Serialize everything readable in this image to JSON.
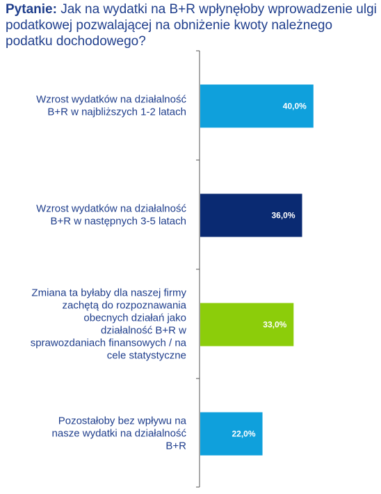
{
  "question": {
    "label": "Pytanie:",
    "text": "Jak na wydatki na B+R wpłynęłoby wprowadzenie ulgi podatkowej pozwalającej na obniżenie kwoty należnego podatku dochodowego?"
  },
  "chart_data": {
    "type": "bar",
    "orientation": "horizontal",
    "title": "",
    "xlabel": "",
    "ylabel": "",
    "xlim": [
      0,
      100
    ],
    "grid": false,
    "categories": [
      [
        "Wzrost wydatków na działalność",
        "B+R w najbliższych 1-2 latach"
      ],
      [
        "Wzrost wydatków na działalność",
        "B+R w następnych 3-5 latach"
      ],
      [
        "Zmiana ta byłaby dla naszej firmy",
        "zachętą do rozpoznawania",
        "obecnych działań jako",
        "działalność B+R w",
        "sprawozdaniach finansowych / na",
        "cele statystyczne"
      ],
      [
        "Pozostałoby bez wpływu na",
        "nasze wydatki na działalność",
        "B+R"
      ]
    ],
    "values": [
      40.0,
      36.0,
      33.0,
      22.0
    ],
    "value_labels": [
      "40,0%",
      "36,0%",
      "33,0%",
      "22,0%"
    ],
    "colors": [
      "#0fa0dc",
      "#0a2a72",
      "#8ccd0a",
      "#0fa0dc"
    ]
  }
}
